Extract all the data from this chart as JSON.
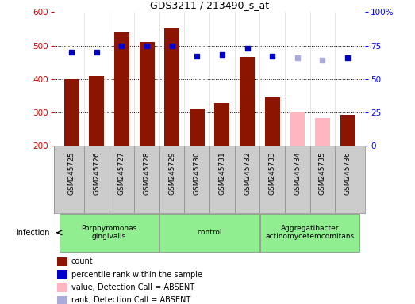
{
  "title": "GDS3211 / 213490_s_at",
  "samples": [
    "GSM245725",
    "GSM245726",
    "GSM245727",
    "GSM245728",
    "GSM245729",
    "GSM245730",
    "GSM245731",
    "GSM245732",
    "GSM245733",
    "GSM245734",
    "GSM245735",
    "GSM245736"
  ],
  "bar_values": [
    400,
    408,
    540,
    510,
    552,
    310,
    328,
    465,
    345,
    300,
    283,
    292
  ],
  "bar_absent": [
    false,
    false,
    false,
    false,
    false,
    false,
    false,
    false,
    false,
    true,
    true,
    false
  ],
  "rank_values": [
    70,
    70,
    75,
    75,
    75,
    67,
    68,
    73,
    67,
    66,
    64,
    66
  ],
  "rank_absent": [
    false,
    false,
    false,
    false,
    false,
    false,
    false,
    false,
    false,
    true,
    true,
    false
  ],
  "ylim_left": [
    200,
    600
  ],
  "ylim_right": [
    0,
    100
  ],
  "yticks_left": [
    200,
    300,
    400,
    500,
    600
  ],
  "yticks_right": [
    0,
    25,
    50,
    75,
    100
  ],
  "bar_color_present": "#8B1500",
  "bar_color_absent": "#FFB6C1",
  "rank_color_present": "#0000CC",
  "rank_color_absent": "#AAAADD",
  "bg_color": "#CCCCCC",
  "group_color": "#90EE90",
  "groups": [
    {
      "label": "Porphyromonas\ngingivalis",
      "start": 0,
      "end": 3
    },
    {
      "label": "control",
      "start": 4,
      "end": 7
    },
    {
      "label": "Aggregatibacter\nactinomycetemcomitans",
      "start": 8,
      "end": 11
    }
  ],
  "infection_label": "infection",
  "legend_items": [
    {
      "color": "#8B1500",
      "label": "count"
    },
    {
      "color": "#0000CC",
      "label": "percentile rank within the sample"
    },
    {
      "color": "#FFB6C1",
      "label": "value, Detection Call = ABSENT"
    },
    {
      "color": "#AAAADD",
      "label": "rank, Detection Call = ABSENT"
    }
  ]
}
